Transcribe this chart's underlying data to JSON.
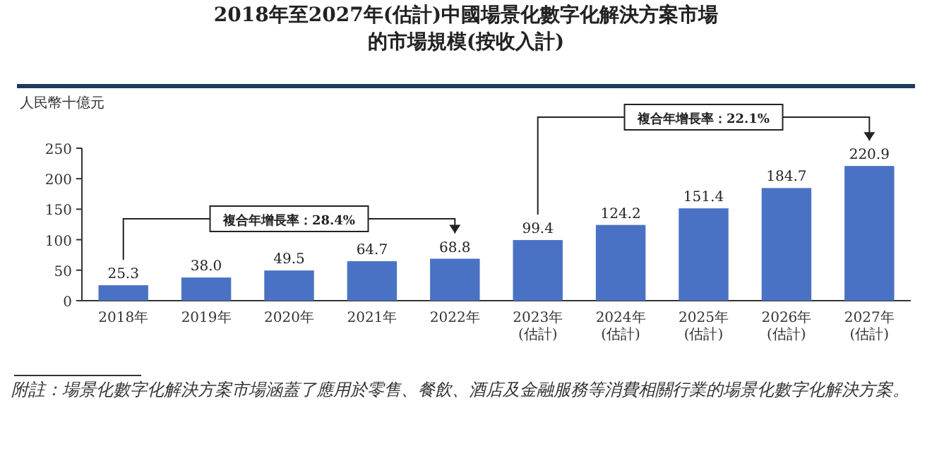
{
  "chart_data": {
    "type": "bar",
    "title": "2018年至2027年(估計)中國場景化數字化解決方案市場的市場規模(按收入計)",
    "ylabel": "人民幣十億元",
    "categories": [
      "2018年",
      "2019年",
      "2020年",
      "2021年",
      "2022年",
      "2023年\n(估計)",
      "2024年\n(估計)",
      "2025年\n(估計)",
      "2026年\n(估計)",
      "2027年\n(估計)"
    ],
    "values": [
      25.3,
      38.0,
      49.5,
      64.7,
      68.8,
      99.4,
      124.2,
      151.4,
      184.7,
      220.9
    ],
    "value_labels": [
      "25.3",
      "38.0",
      "49.5",
      "64.7",
      "68.8",
      "99.4",
      "124.2",
      "151.4",
      "184.7",
      "220.9"
    ],
    "color": "#4a72c4",
    "ylim": [
      0,
      250
    ],
    "yticks": [
      0,
      50,
      100,
      150,
      200,
      250
    ],
    "grid": false,
    "annotations": [
      "複合年增長率：28.4%",
      "複合年增長率：22.1%",
      "附註：場景化數字化解決方案市場涵蓋了應用於零售、餐飲、酒店及金融服務等消費相關行業的場景化數字化解決方案。"
    ]
  }
}
